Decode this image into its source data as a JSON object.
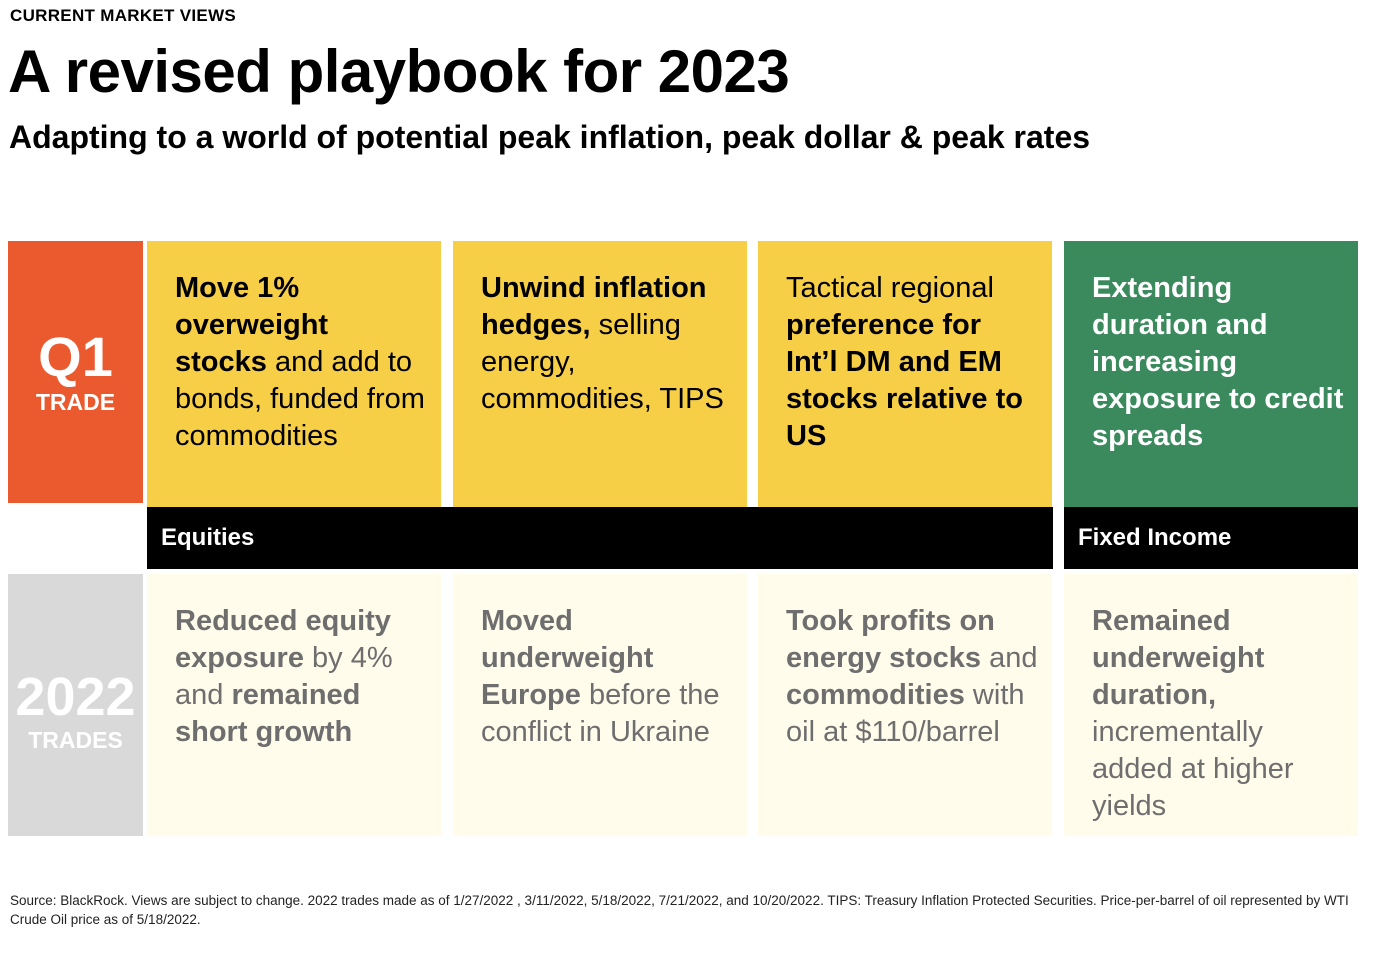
{
  "header": {
    "eyebrow": "CURRENT MARKET VIEWS",
    "title": "A revised playbook for 2023",
    "subtitle": "Adapting to a world of potential peak inflation, peak dollar & peak rates"
  },
  "q1_label": {
    "big": "Q1",
    "small": "TRADE"
  },
  "trades_label": {
    "big": "2022",
    "small": "TRADES"
  },
  "q1_cards": [
    {
      "b1": "Move 1% overweight stocks",
      "t1": " and add to bonds, funded from commodities"
    },
    {
      "b1": "Unwind inflation hedges,",
      "t1": " selling energy, commodities, TIPS"
    },
    {
      "t0": "Tactical regional ",
      "b1": "preference for Int’l DM and EM stocks relative to US"
    },
    {
      "b1": "Extending duration and increasing exposure to credit spreads"
    }
  ],
  "bands": {
    "equities": "Equities",
    "fixed_income": "Fixed Income"
  },
  "trades_cards": [
    {
      "b1": "Reduced equity exposure",
      "t1": " by 4% and ",
      "b2": "remained short growth"
    },
    {
      "b1": "Moved underweight Europe",
      "t1": " before the conflict in Ukraine"
    },
    {
      "b1": "Took profits on energy stocks",
      "t1": " and ",
      "b2": "commodities",
      "t2": " with oil at $110/barrel"
    },
    {
      "b1": "Remained underweight duration,",
      "t1": " incrementally added at higher yields"
    }
  ],
  "footnote": "Source: BlackRock. Views are subject to change. 2022  trades made as of 1/27/2022 , 3/11/2022,  5/18/2022, 7/21/2022, and 10/20/2022. TIPS: Treasury Inflation Protected Securities. Price-per-barrel of oil represented by WTI Crude Oil price as of 5/18/2022.",
  "colors": {
    "q1_label": "#ea5a2e",
    "equities_card": "#f6cf47",
    "fixed_income_card": "#3a8a5e",
    "trades_card": "#fffcec",
    "trades_label": "#d9d9d9",
    "band": "#000000"
  }
}
